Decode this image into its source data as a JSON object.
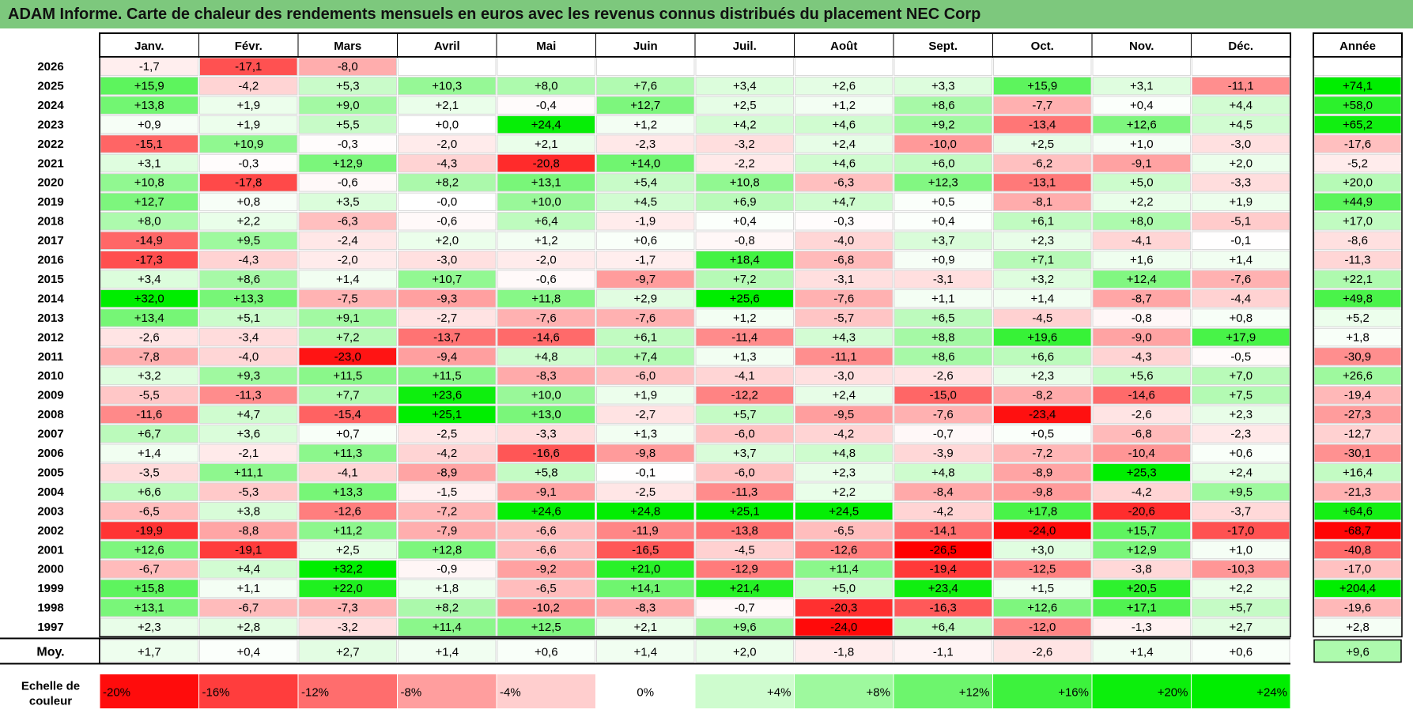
{
  "title": "ADAM Informe. Carte de chaleur des rendements mensuels en euros avec les revenus connus distribués du placement NEC Corp",
  "chart_data": {
    "type": "heatmap",
    "title": "ADAM Informe. Carte de chaleur des rendements mensuels en euros avec les revenus connus distribués du placement NEC Corp",
    "months": [
      "Janv.",
      "Févr.",
      "Mars",
      "Avril",
      "Mai",
      "Juin",
      "Juil.",
      "Août",
      "Sept.",
      "Oct.",
      "Nov.",
      "Déc."
    ],
    "year_header": "Année",
    "rows": [
      {
        "year": "2026",
        "values": [
          -1.7,
          -17.1,
          -8.0,
          null,
          null,
          null,
          null,
          null,
          null,
          null,
          null,
          null
        ],
        "annual": null
      },
      {
        "year": "2025",
        "values": [
          15.9,
          -4.2,
          5.3,
          10.3,
          8.0,
          7.6,
          3.4,
          2.6,
          3.3,
          15.9,
          3.1,
          -11.1
        ],
        "annual": 74.1
      },
      {
        "year": "2024",
        "values": [
          13.8,
          1.9,
          9.0,
          2.1,
          -0.4,
          12.7,
          2.5,
          1.2,
          8.6,
          -7.7,
          0.4,
          4.4
        ],
        "annual": 58.0
      },
      {
        "year": "2023",
        "values": [
          0.9,
          1.9,
          5.5,
          0.0,
          24.4,
          1.2,
          4.2,
          4.6,
          9.2,
          -13.4,
          12.6,
          4.5
        ],
        "annual": 65.2
      },
      {
        "year": "2022",
        "values": [
          -15.1,
          10.9,
          -0.3,
          -2.0,
          2.1,
          -2.3,
          -3.2,
          2.4,
          -10.0,
          2.5,
          1.0,
          -3.0
        ],
        "annual": -17.6
      },
      {
        "year": "2021",
        "values": [
          3.1,
          -0.3,
          12.9,
          -4.3,
          -20.8,
          14.0,
          -2.2,
          4.6,
          6.0,
          -6.2,
          -9.1,
          2.0
        ],
        "annual": -5.2
      },
      {
        "year": "2020",
        "values": [
          10.8,
          -17.8,
          -0.6,
          8.2,
          13.1,
          5.4,
          10.8,
          -6.3,
          12.3,
          -13.1,
          5.0,
          -3.3
        ],
        "annual": 20.0
      },
      {
        "year": "2019",
        "values": [
          12.7,
          0.8,
          3.5,
          -0.0,
          10.0,
          4.5,
          6.9,
          4.7,
          0.5,
          -8.1,
          2.2,
          1.9
        ],
        "annual": 44.9
      },
      {
        "year": "2018",
        "values": [
          8.0,
          2.2,
          -6.3,
          -0.6,
          6.4,
          -1.9,
          0.4,
          -0.3,
          0.4,
          6.1,
          8.0,
          -5.1
        ],
        "annual": 17.0
      },
      {
        "year": "2017",
        "values": [
          -14.9,
          9.5,
          -2.4,
          2.0,
          1.2,
          0.6,
          -0.8,
          -4.0,
          3.7,
          2.3,
          -4.1,
          -0.1
        ],
        "annual": -8.6
      },
      {
        "year": "2016",
        "values": [
          -17.3,
          -4.3,
          -2.0,
          -3.0,
          -2.0,
          -1.7,
          18.4,
          -6.8,
          0.9,
          7.1,
          1.6,
          1.4
        ],
        "annual": -11.3
      },
      {
        "year": "2015",
        "values": [
          3.4,
          8.6,
          1.4,
          10.7,
          -0.6,
          -9.7,
          7.2,
          -3.1,
          -3.1,
          3.2,
          12.4,
          -7.6
        ],
        "annual": 22.1
      },
      {
        "year": "2014",
        "values": [
          32.0,
          13.3,
          -7.5,
          -9.3,
          11.8,
          2.9,
          25.6,
          -7.6,
          1.1,
          1.4,
          -8.7,
          -4.4
        ],
        "annual": 49.8
      },
      {
        "year": "2013",
        "values": [
          13.4,
          5.1,
          9.1,
          -2.7,
          -7.6,
          -7.6,
          1.2,
          -5.7,
          6.5,
          -4.5,
          -0.8,
          0.8
        ],
        "annual": 5.2
      },
      {
        "year": "2012",
        "values": [
          -2.6,
          -3.4,
          7.2,
          -13.7,
          -14.6,
          6.1,
          -11.4,
          4.3,
          8.8,
          19.6,
          -9.0,
          17.9
        ],
        "annual": 1.8
      },
      {
        "year": "2011",
        "values": [
          -7.8,
          -4.0,
          -23.0,
          -9.4,
          4.8,
          7.4,
          1.3,
          -11.1,
          8.6,
          6.6,
          -4.3,
          -0.5
        ],
        "annual": -30.9
      },
      {
        "year": "2010",
        "values": [
          3.2,
          9.3,
          11.5,
          11.5,
          -8.3,
          -6.0,
          -4.1,
          -3.0,
          -2.6,
          2.3,
          5.6,
          7.0
        ],
        "annual": 26.6
      },
      {
        "year": "2009",
        "values": [
          -5.5,
          -11.3,
          7.7,
          23.6,
          10.0,
          1.9,
          -12.2,
          2.4,
          -15.0,
          -8.2,
          -14.6,
          7.5
        ],
        "annual": -19.4
      },
      {
        "year": "2008",
        "values": [
          -11.6,
          4.7,
          -15.4,
          25.1,
          13.0,
          -2.7,
          5.7,
          -9.5,
          -7.6,
          -23.4,
          -2.6,
          2.3
        ],
        "annual": -27.3
      },
      {
        "year": "2007",
        "values": [
          6.7,
          3.6,
          0.7,
          -2.5,
          -3.3,
          1.3,
          -6.0,
          -4.2,
          -0.7,
          0.5,
          -6.8,
          -2.3
        ],
        "annual": -12.7
      },
      {
        "year": "2006",
        "values": [
          1.4,
          -2.1,
          11.3,
          -4.2,
          -16.6,
          -9.8,
          3.7,
          4.8,
          -3.9,
          -7.2,
          -10.4,
          0.6
        ],
        "annual": -30.1
      },
      {
        "year": "2005",
        "values": [
          -3.5,
          11.1,
          -4.1,
          -8.9,
          5.8,
          -0.1,
          -6.0,
          2.3,
          4.8,
          -8.9,
          25.3,
          2.4
        ],
        "annual": 16.4
      },
      {
        "year": "2004",
        "values": [
          6.6,
          -5.3,
          13.3,
          -1.5,
          -9.1,
          -2.5,
          -11.3,
          2.2,
          -8.4,
          -9.8,
          -4.2,
          9.5
        ],
        "annual": -21.3
      },
      {
        "year": "2003",
        "values": [
          -6.5,
          3.8,
          -12.6,
          -7.2,
          24.6,
          24.8,
          25.1,
          24.5,
          -4.2,
          17.8,
          -20.6,
          -3.7
        ],
        "annual": 64.6
      },
      {
        "year": "2002",
        "values": [
          -19.9,
          -8.8,
          11.2,
          -7.9,
          -6.6,
          -11.9,
          -13.8,
          -6.5,
          -14.1,
          -24.0,
          15.7,
          -17.0
        ],
        "annual": -68.7
      },
      {
        "year": "2001",
        "values": [
          12.6,
          -19.1,
          2.5,
          12.8,
          -6.6,
          -16.5,
          -4.5,
          -12.6,
          -26.5,
          3.0,
          12.9,
          1.0
        ],
        "annual": -40.8
      },
      {
        "year": "2000",
        "values": [
          -6.7,
          4.4,
          32.2,
          -0.9,
          -9.2,
          21.0,
          -12.9,
          11.4,
          -19.4,
          -12.5,
          -3.8,
          -10.3
        ],
        "annual": -17.0
      },
      {
        "year": "1999",
        "values": [
          15.8,
          1.1,
          22.0,
          1.8,
          -6.5,
          14.1,
          21.4,
          5.0,
          23.4,
          1.5,
          20.5,
          2.2
        ],
        "annual": 204.4
      },
      {
        "year": "1998",
        "values": [
          13.1,
          -6.7,
          -7.3,
          8.2,
          -10.2,
          -8.3,
          -0.7,
          -20.3,
          -16.3,
          12.6,
          17.1,
          5.7
        ],
        "annual": -19.6
      },
      {
        "year": "1997",
        "values": [
          2.3,
          2.8,
          -3.2,
          11.4,
          12.5,
          2.1,
          9.6,
          -24.0,
          6.4,
          -12.0,
          -1.3,
          2.7
        ],
        "annual": 2.8
      }
    ],
    "average": {
      "label": "Moy.",
      "values": [
        1.7,
        0.4,
        2.7,
        1.4,
        0.6,
        1.4,
        2.0,
        -1.8,
        -1.1,
        -2.6,
        1.4,
        0.6
      ],
      "annual": 9.6
    },
    "legend": {
      "label_line1": "Echelle de",
      "label_line2": "couleur",
      "stops": [
        {
          "value": -20,
          "label": "-20%"
        },
        {
          "value": -16,
          "label": "-16%"
        },
        {
          "value": -12,
          "label": "-12%"
        },
        {
          "value": -8,
          "label": "-8%"
        },
        {
          "value": -4,
          "label": "-4%"
        },
        {
          "value": 0,
          "label": "0%"
        },
        {
          "value": 4,
          "label": "+4%"
        },
        {
          "value": 8,
          "label": "+8%"
        },
        {
          "value": 12,
          "label": "+12%"
        },
        {
          "value": 16,
          "label": "+16%"
        },
        {
          "value": 20,
          "label": "+20%"
        },
        {
          "value": 24,
          "label": "+24%"
        }
      ]
    },
    "colors": {
      "negative_max": "#ff0000",
      "neutral": "#ffffff",
      "positive_max": "#00ee00",
      "title_bar": "#7dc87d"
    }
  }
}
